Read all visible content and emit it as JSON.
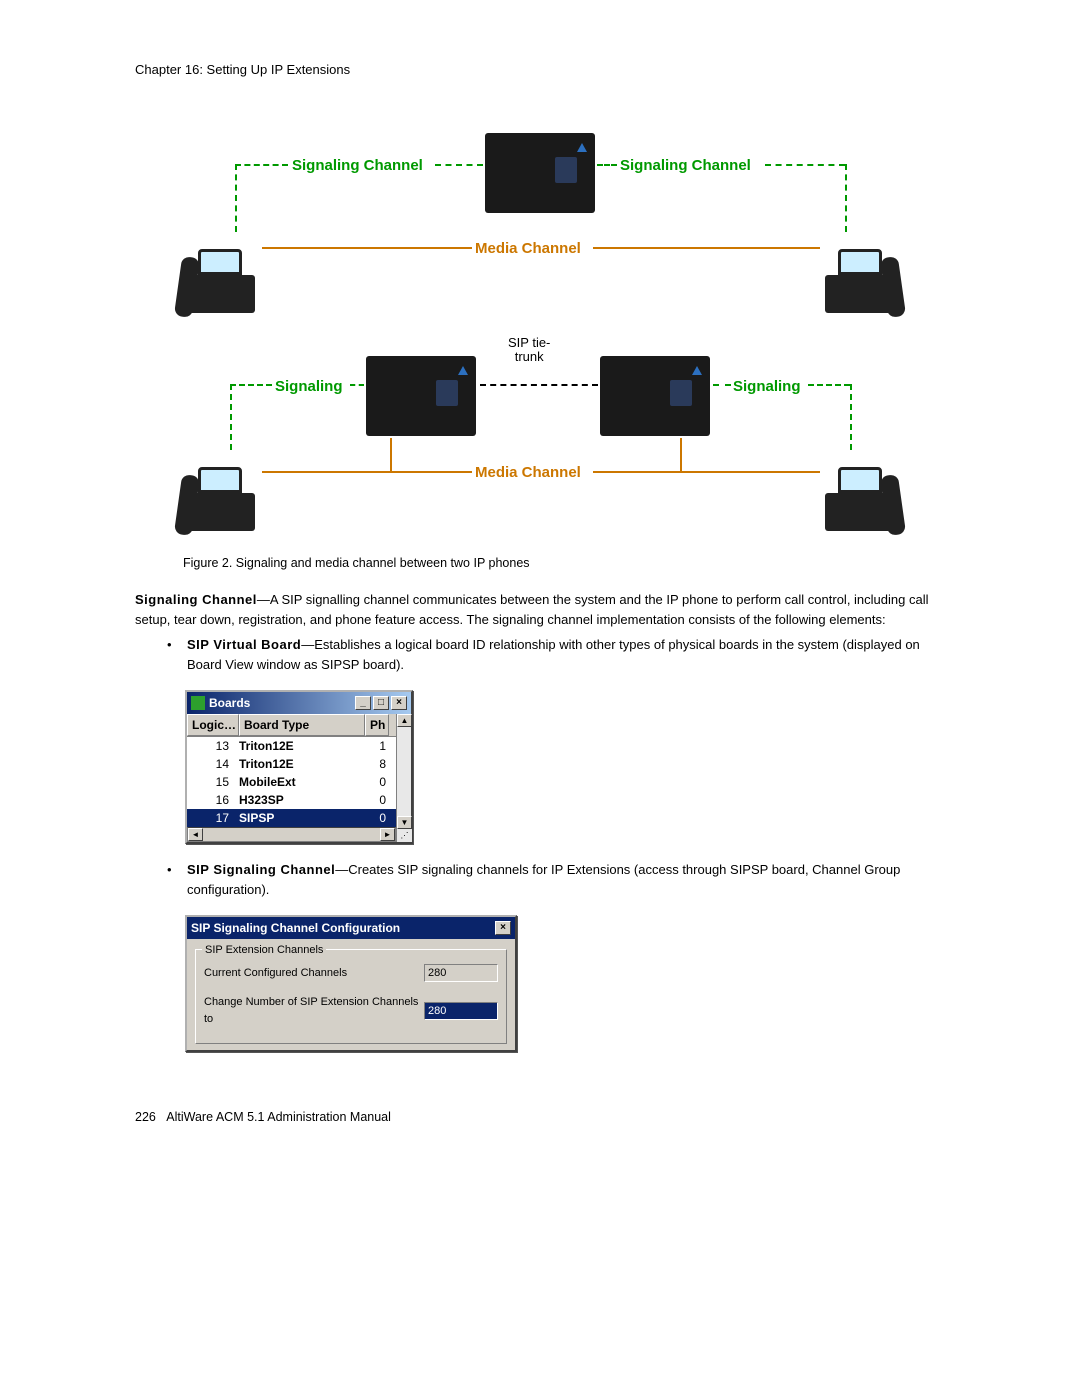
{
  "chapter_header": "Chapter 16:  Setting Up IP Extensions",
  "diagram_labels": {
    "signaling_channel": "Signaling Channel",
    "signaling": "Signaling",
    "media_channel": "Media Channel",
    "sip_tie_trunk": "SIP tie-\ntrunk",
    "color_signal": "#009900",
    "color_media": "#cc7700"
  },
  "figure_caption": "Figure 2.   Signaling and media channel between two IP phones",
  "para1_term": "Signaling Channel",
  "para1_text": "—A SIP signalling channel communicates between the system and the IP phone to perform call control, including call setup, tear down, registration, and phone feature access. The signaling channel implementation consists of the following elements:",
  "bullet1_term": "SIP Virtual Board",
  "bullet1_text": "—Establishes a logical board ID relationship with other types of physical boards in the system (displayed on Board View window as SIPSP board).",
  "boards_window": {
    "title": "Boards",
    "columns": [
      "Logic…",
      "Board Type",
      "Ph"
    ],
    "rows": [
      {
        "logic": "13",
        "type": "Triton12E",
        "ph": "1",
        "selected": false
      },
      {
        "logic": "14",
        "type": "Triton12E",
        "ph": "8",
        "selected": false
      },
      {
        "logic": "15",
        "type": "MobileExt",
        "ph": "0",
        "selected": false
      },
      {
        "logic": "16",
        "type": "H323SP",
        "ph": "0",
        "selected": false
      },
      {
        "logic": "17",
        "type": "SIPSP",
        "ph": "0",
        "selected": true
      }
    ]
  },
  "bullet2_term": "SIP Signaling Channel",
  "bullet2_text": "—Creates SIP signaling channels for IP Extensions (access through SIPSP board, Channel Group configuration).",
  "sip_window": {
    "title": "SIP Signaling Channel Configuration",
    "legend": "SIP Extension Channels",
    "row1_label": "Current Configured Channels",
    "row1_value": "280",
    "row2_label": "Change Number of SIP Extension Channels to",
    "row2_value": "280"
  },
  "footer_page": "226",
  "footer_text": "AltiWare ACM 5.1 Administration Manual"
}
